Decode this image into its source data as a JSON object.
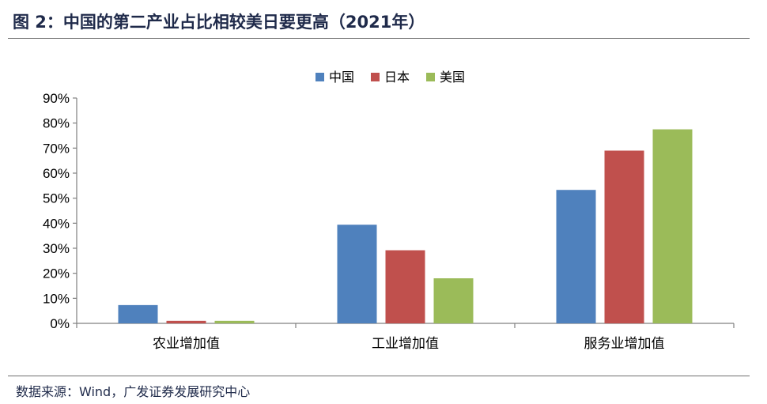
{
  "figure": {
    "title": "图 2：中国的第二产业占比相较美日要更高（2021年）",
    "source": "数据来源：Wind，广发证券发展研究中心"
  },
  "chart_data": {
    "type": "bar",
    "title": "",
    "xlabel": "",
    "ylabel": "",
    "categories": [
      "农业增加值",
      "工业增加值",
      "服务业增加值"
    ],
    "series": [
      {
        "name": "中国",
        "color": "#4f81bd",
        "values": [
          7.3,
          39.4,
          53.3
        ]
      },
      {
        "name": "日本",
        "color": "#c0504d",
        "values": [
          1.0,
          29.2,
          69.0
        ]
      },
      {
        "name": "美国",
        "color": "#9bbb59",
        "values": [
          1.0,
          18.0,
          77.5
        ]
      }
    ],
    "ylim": [
      0,
      90
    ],
    "yticks": [
      "0%",
      "10%",
      "20%",
      "30%",
      "40%",
      "50%",
      "60%",
      "70%",
      "80%",
      "90%"
    ],
    "grid": false,
    "legend": "top-center"
  }
}
